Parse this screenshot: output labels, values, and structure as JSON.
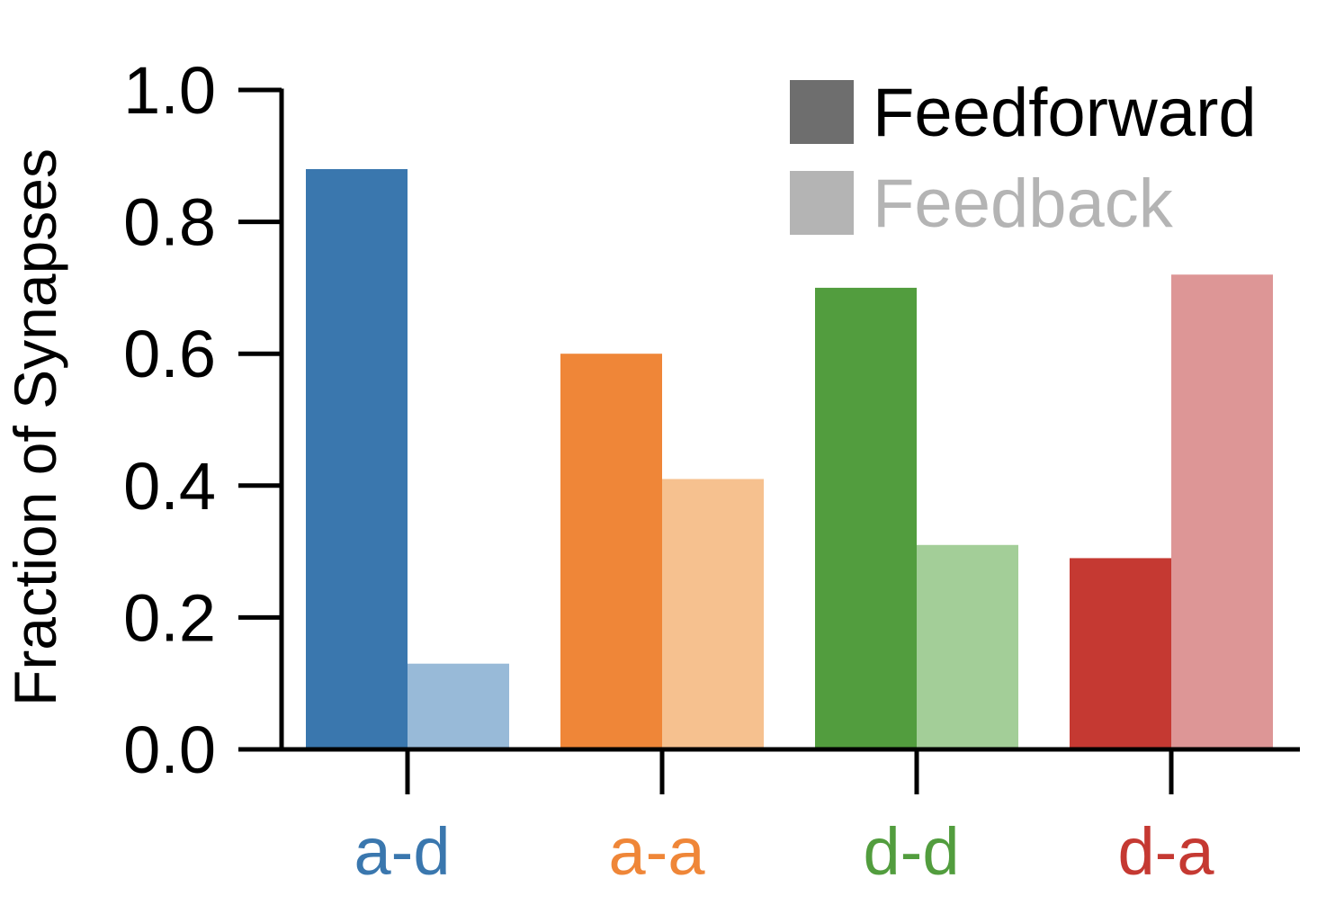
{
  "chart_data": {
    "type": "bar",
    "ylabel": "Fraction of Synapses",
    "xlabel": "",
    "ylim": [
      0,
      1.0
    ],
    "yticks": [
      "0.0",
      "0.2",
      "0.4",
      "0.6",
      "0.8",
      "1.0"
    ],
    "categories": [
      "a-d",
      "a-a",
      "d-d",
      "d-a"
    ],
    "category_colors": [
      "#3a77ae",
      "#ef8638",
      "#529d3e",
      "#c53932"
    ],
    "series": [
      {
        "name": "Feedforward",
        "values": [
          0.88,
          0.6,
          0.7,
          0.29
        ],
        "colors": [
          "#3a77ae",
          "#ef8638",
          "#529d3e",
          "#c53932"
        ],
        "legend_color": "#6e6e6e"
      },
      {
        "name": "Feedback",
        "values": [
          0.13,
          0.41,
          0.31,
          0.72
        ],
        "colors": [
          "#98bad8",
          "#f6c18f",
          "#a3ce98",
          "#dd9696"
        ],
        "legend_color": "#b4b4b4"
      }
    ],
    "legend_position": "top-right",
    "grid": false
  }
}
